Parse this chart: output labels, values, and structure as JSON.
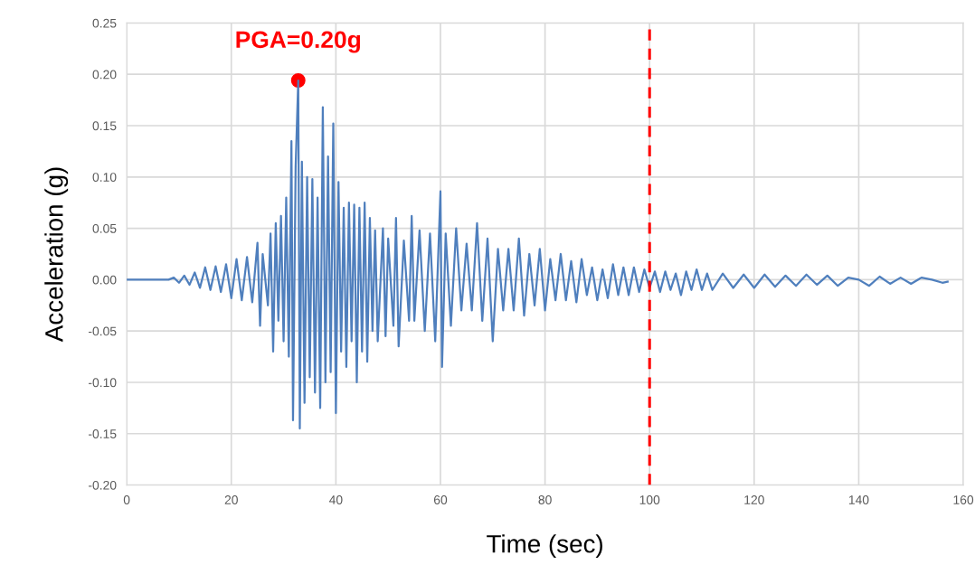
{
  "chart_data": {
    "type": "line",
    "xlabel": "Time (sec)",
    "ylabel": "Acceleration (g)",
    "series": [
      {
        "color": "#4f7fbd",
        "x": [
          0,
          8,
          9,
          10,
          11,
          12,
          13,
          14,
          15,
          16,
          17,
          18,
          19,
          20,
          21,
          22,
          23,
          24,
          25,
          25.5,
          26,
          27,
          27.5,
          28,
          28.5,
          29,
          29.5,
          30,
          30.5,
          31,
          31.5,
          31.8,
          32.3,
          32.8,
          33.1,
          33.5,
          34,
          34.5,
          35,
          35.5,
          36,
          36.5,
          37,
          37.5,
          38,
          38.5,
          39,
          39.5,
          40,
          40.5,
          41,
          41.5,
          42,
          42.5,
          43,
          43.5,
          44,
          44.5,
          45,
          45.5,
          46,
          46.5,
          47,
          47.5,
          48,
          49,
          49.5,
          50,
          51,
          51.5,
          52,
          53,
          54,
          54.5,
          55,
          56,
          57,
          58,
          59,
          60,
          60.3,
          61,
          62,
          63,
          64,
          65,
          66,
          67,
          68,
          69,
          70,
          71,
          72,
          73,
          74,
          75,
          76,
          77,
          78,
          79,
          80,
          81,
          82,
          83,
          84,
          85,
          86,
          87,
          88,
          89,
          90,
          91,
          92,
          93,
          94,
          95,
          96,
          97,
          98,
          99,
          100,
          101,
          102,
          103,
          104,
          105,
          106,
          107,
          108,
          109,
          110,
          111,
          112,
          114,
          116,
          118,
          120,
          122,
          124,
          126,
          128,
          130,
          132,
          134,
          136,
          138,
          140,
          142,
          144,
          146,
          148,
          150,
          152,
          154,
          156,
          157
        ],
        "values": [
          0,
          0,
          0.002,
          -0.003,
          0.004,
          -0.005,
          0.007,
          -0.008,
          0.012,
          -0.01,
          0.013,
          -0.012,
          0.015,
          -0.018,
          0.02,
          -0.02,
          0.022,
          -0.022,
          0.036,
          -0.045,
          0.025,
          -0.025,
          0.045,
          -0.07,
          0.055,
          -0.04,
          0.062,
          -0.06,
          0.08,
          -0.075,
          0.135,
          -0.137,
          0.11,
          0.194,
          -0.145,
          0.115,
          -0.12,
          0.1,
          -0.095,
          0.098,
          -0.11,
          0.08,
          -0.125,
          0.168,
          -0.1,
          0.12,
          -0.09,
          0.152,
          -0.13,
          0.095,
          -0.07,
          0.07,
          -0.085,
          0.075,
          -0.06,
          0.073,
          -0.1,
          0.07,
          -0.07,
          0.075,
          -0.08,
          0.06,
          -0.05,
          0.048,
          -0.06,
          0.05,
          -0.055,
          0.04,
          -0.045,
          0.06,
          -0.065,
          0.038,
          -0.04,
          0.062,
          -0.04,
          0.048,
          -0.05,
          0.045,
          -0.06,
          0.086,
          -0.085,
          0.045,
          -0.045,
          0.05,
          -0.03,
          0.035,
          -0.03,
          0.055,
          -0.04,
          0.04,
          -0.06,
          0.03,
          -0.03,
          0.03,
          -0.03,
          0.04,
          -0.035,
          0.025,
          -0.025,
          0.03,
          -0.03,
          0.02,
          -0.02,
          0.025,
          -0.02,
          0.018,
          -0.022,
          0.02,
          -0.015,
          0.012,
          -0.02,
          0.01,
          -0.018,
          0.015,
          -0.015,
          0.012,
          -0.015,
          0.012,
          -0.012,
          0.01,
          -0.008,
          0.008,
          -0.012,
          0.008,
          -0.01,
          0.006,
          -0.015,
          0.008,
          -0.01,
          0.01,
          -0.01,
          0.006,
          -0.01,
          0.006,
          -0.008,
          0.005,
          -0.008,
          0.005,
          -0.007,
          0.004,
          -0.006,
          0.005,
          -0.005,
          0.004,
          -0.006,
          0.002,
          0,
          -0.006,
          0.003,
          -0.004,
          0.002,
          -0.004,
          0.002,
          0,
          -0.003,
          -0.002
        ]
      },
      {
        "type": "scatter",
        "color": "#ff0000",
        "x": [
          32.8
        ],
        "values": [
          0.194
        ]
      }
    ],
    "annotations": [
      {
        "text": "PGA=0.20g",
        "x": 32.8,
        "y": 0.194
      }
    ],
    "ref_lines": [
      {
        "axis": "x",
        "value": 100,
        "color": "#ff0000",
        "line_style": "dashed"
      }
    ],
    "xlim": [
      0,
      160
    ],
    "xticks": [
      0,
      20,
      40,
      60,
      80,
      100,
      120,
      140,
      160
    ],
    "ylim": [
      -0.2,
      0.25
    ],
    "yticks": [
      {
        "value": -0.2,
        "label": "-0.20"
      },
      {
        "value": -0.15,
        "label": "-0.15"
      },
      {
        "value": -0.1,
        "label": "-0.10"
      },
      {
        "value": -0.05,
        "label": "-0.05"
      },
      {
        "value": 0,
        "label": "0.00"
      },
      {
        "value": 0.05,
        "label": "0.05"
      },
      {
        "value": 0.1,
        "label": "0.10"
      },
      {
        "value": 0.15,
        "label": "0.15"
      },
      {
        "value": 0.2,
        "label": "0.20"
      },
      {
        "value": 0.25,
        "label": "0.25"
      }
    ],
    "grid": true
  }
}
